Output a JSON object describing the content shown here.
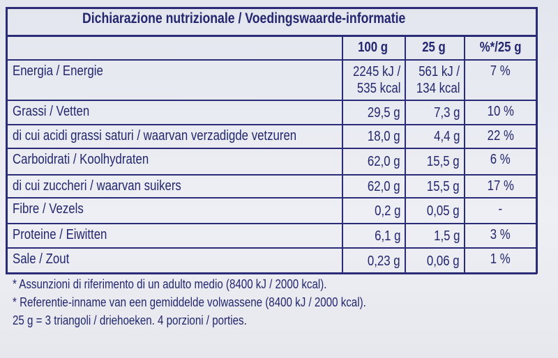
{
  "title": "Dichiarazione nutrizionale / Voedingswaarde-informatie",
  "table": {
    "header": [
      "100 g",
      "25 g",
      "%*/25 g"
    ],
    "rows": [
      [
        "Energia / Energie",
        [
          "2245 kJ /",
          "535 kcal"
        ],
        [
          "561 kJ /",
          "134 kcal"
        ],
        "7 %"
      ],
      [
        "Grassi / Vetten",
        "29,5 g",
        "7,3 g",
        "10 %"
      ],
      [
        "di cui acidi grassi saturi / waarvan verzadigde vetzuren",
        "18,0 g",
        "4,4 g",
        "22 %"
      ],
      [
        "Carboidrati / Koolhydraten",
        "62,0 g",
        "15,5 g",
        "6 %"
      ],
      [
        "di cui zuccheri / waarvan suikers",
        "62,0 g",
        "15,5 g",
        "17 %"
      ],
      [
        "Fibre / Vezels",
        "0,2 g",
        "0,05 g",
        "-"
      ],
      [
        "Proteine / Eiwitten",
        "6,1 g",
        "1,5 g",
        "3 %"
      ],
      [
        "Sale / Zout",
        "0,23 g",
        "0,06 g",
        "1 %"
      ]
    ]
  },
  "footnotes": [
    "* Assunzioni di riferimento di un adulto medio (8400 kJ / 2000 kcal).",
    "* Referentie-inname van een gemiddelde volwassene (8400 kJ / 2000 kcal).",
    "25 g = 3 triangoli / driehoeken. 4 porzioni / porties."
  ]
}
